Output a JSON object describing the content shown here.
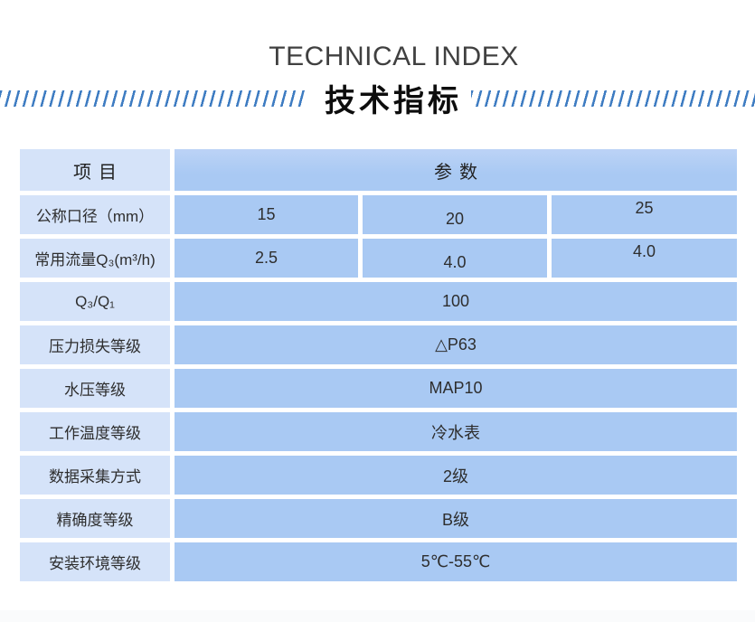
{
  "header": {
    "title_en": "TECHNICAL INDEX",
    "title_zh": "技术指标"
  },
  "colors": {
    "stripe_blue": "#3e7cc2",
    "cell_light": "#d5e3f9",
    "cell_medium": "#a9c9f3",
    "title_gray": "#404040",
    "text_dark": "#2e2e2e",
    "bottom_band": "#fafbfc"
  },
  "table": {
    "header": {
      "item": "项目",
      "param": "参数"
    },
    "rows": [
      {
        "label": "公称口径（mm）",
        "values": [
          "15",
          "20",
          "25"
        ]
      },
      {
        "label": "常用流量Q₃(m³/h)",
        "values": [
          "2.5",
          "4.0",
          "4.0"
        ]
      },
      {
        "label": "Q₃/Q₁",
        "value": "100"
      },
      {
        "label": "压力损失等级",
        "value": "△P63"
      },
      {
        "label": "水压等级",
        "value": "MAP10"
      },
      {
        "label": "工作温度等级",
        "value": "冷水表"
      },
      {
        "label": "数据采集方式",
        "value": "2级"
      },
      {
        "label": "精确度等级",
        "value": "B级"
      },
      {
        "label": "安装环境等级",
        "value": "5℃-55℃"
      }
    ]
  }
}
